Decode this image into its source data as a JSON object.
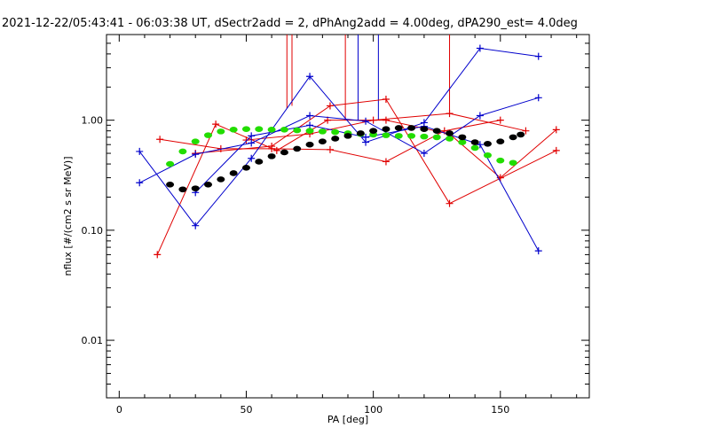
{
  "chart_data": {
    "type": "line",
    "title": "2021-12-22/05:43:41 - 06:03:38 UT, dSectr2add = 2, dPhAng2add = 4.00deg, dPA290_est=    4.0deg",
    "xlabel": "PA [deg]",
    "ylabel": "nflux [#/(cm2 s sr MeV)]",
    "xlim": [
      -5,
      185
    ],
    "ylim": [
      0.003,
      6
    ],
    "yscale": "log",
    "x_ticks": [
      0,
      50,
      100,
      150
    ],
    "x_tick_labels": [
      "0",
      "50",
      "100",
      "150"
    ],
    "y_ticks": [
      0.01,
      0.1,
      1.0
    ],
    "y_tick_labels": [
      "0.01",
      "0.10",
      "1.00"
    ],
    "grid": false,
    "legend": "none",
    "colors": {
      "red": "#e00000",
      "blue": "#0000cc",
      "green": "#22dd00",
      "black": "#000000"
    },
    "series": [
      {
        "color": "red",
        "style": "line+plus",
        "x": [
          15,
          38,
          62,
          82,
          105,
          130,
          150,
          172
        ],
        "y": [
          0.06,
          0.92,
          0.53,
          1.0,
          1.0,
          0.75,
          0.3,
          0.82
        ]
      },
      {
        "color": "red",
        "style": "line+plus",
        "x": [
          16,
          40,
          60,
          83,
          105,
          128,
          150
        ],
        "y": [
          0.67,
          0.55,
          0.55,
          0.54,
          0.42,
          0.8,
          1.0
        ]
      },
      {
        "color": "red",
        "style": "line+plus",
        "x": [
          30,
          60,
          83,
          105,
          130,
          172
        ],
        "y": [
          0.5,
          0.58,
          1.35,
          1.55,
          0.175,
          0.53
        ]
      },
      {
        "color": "red",
        "style": "line+plus",
        "x": [
          50,
          75,
          100,
          130,
          160
        ],
        "y": [
          0.66,
          0.75,
          1.0,
          1.15,
          0.8
        ]
      },
      {
        "color": "blue",
        "style": "line+plus",
        "x": [
          8,
          30,
          52,
          75,
          97,
          120,
          142,
          165
        ],
        "y": [
          0.52,
          0.11,
          0.45,
          2.5,
          0.63,
          0.95,
          4.5,
          3.8
        ]
      },
      {
        "color": "blue",
        "style": "line+plus",
        "x": [
          8,
          30,
          52,
          75,
          97,
          120,
          142,
          165
        ],
        "y": [
          0.27,
          0.49,
          0.62,
          1.1,
          0.98,
          0.5,
          1.1,
          1.6
        ]
      },
      {
        "color": "blue",
        "style": "line+plus",
        "x": [
          30,
          52,
          75,
          97,
          120,
          142,
          165
        ],
        "y": [
          0.22,
          0.72,
          0.9,
          0.7,
          0.88,
          0.6,
          0.065
        ]
      },
      {
        "color": "green",
        "style": "dots",
        "x": [
          20,
          25,
          30,
          35,
          40,
          45,
          50,
          55,
          60,
          65,
          70,
          75,
          80,
          85,
          90,
          95,
          100,
          105,
          110,
          115,
          120,
          125,
          130,
          135,
          140,
          145,
          150,
          155
        ],
        "y": [
          0.4,
          0.52,
          0.64,
          0.73,
          0.79,
          0.82,
          0.83,
          0.83,
          0.82,
          0.82,
          0.81,
          0.8,
          0.79,
          0.78,
          0.76,
          0.75,
          0.74,
          0.73,
          0.72,
          0.72,
          0.71,
          0.7,
          0.68,
          0.63,
          0.56,
          0.48,
          0.43,
          0.41
        ]
      },
      {
        "color": "black",
        "style": "dots",
        "x": [
          20,
          25,
          30,
          35,
          40,
          45,
          50,
          55,
          60,
          65,
          70,
          75,
          80,
          85,
          90,
          95,
          100,
          105,
          110,
          115,
          120,
          125,
          130,
          135,
          140,
          145,
          150,
          155,
          158
        ],
        "y": [
          0.26,
          0.235,
          0.24,
          0.26,
          0.29,
          0.33,
          0.37,
          0.42,
          0.47,
          0.51,
          0.55,
          0.6,
          0.64,
          0.68,
          0.72,
          0.76,
          0.8,
          0.83,
          0.85,
          0.85,
          0.83,
          0.8,
          0.76,
          0.7,
          0.63,
          0.61,
          0.64,
          0.7,
          0.74
        ]
      }
    ],
    "spikes": [
      {
        "color": "red",
        "x": 66,
        "y_base": 1.28,
        "y_top": 6
      },
      {
        "color": "red",
        "x": 68,
        "y_base": 1.35,
        "y_top": 6
      },
      {
        "color": "red",
        "x": 89,
        "y_base": 1.0,
        "y_top": 6
      },
      {
        "color": "red",
        "x": 130,
        "y_base": 1.15,
        "y_top": 6
      },
      {
        "color": "blue",
        "x": 94,
        "y_base": 1.0,
        "y_top": 6
      },
      {
        "color": "blue",
        "x": 102,
        "y_base": 1.0,
        "y_top": 6
      }
    ]
  }
}
